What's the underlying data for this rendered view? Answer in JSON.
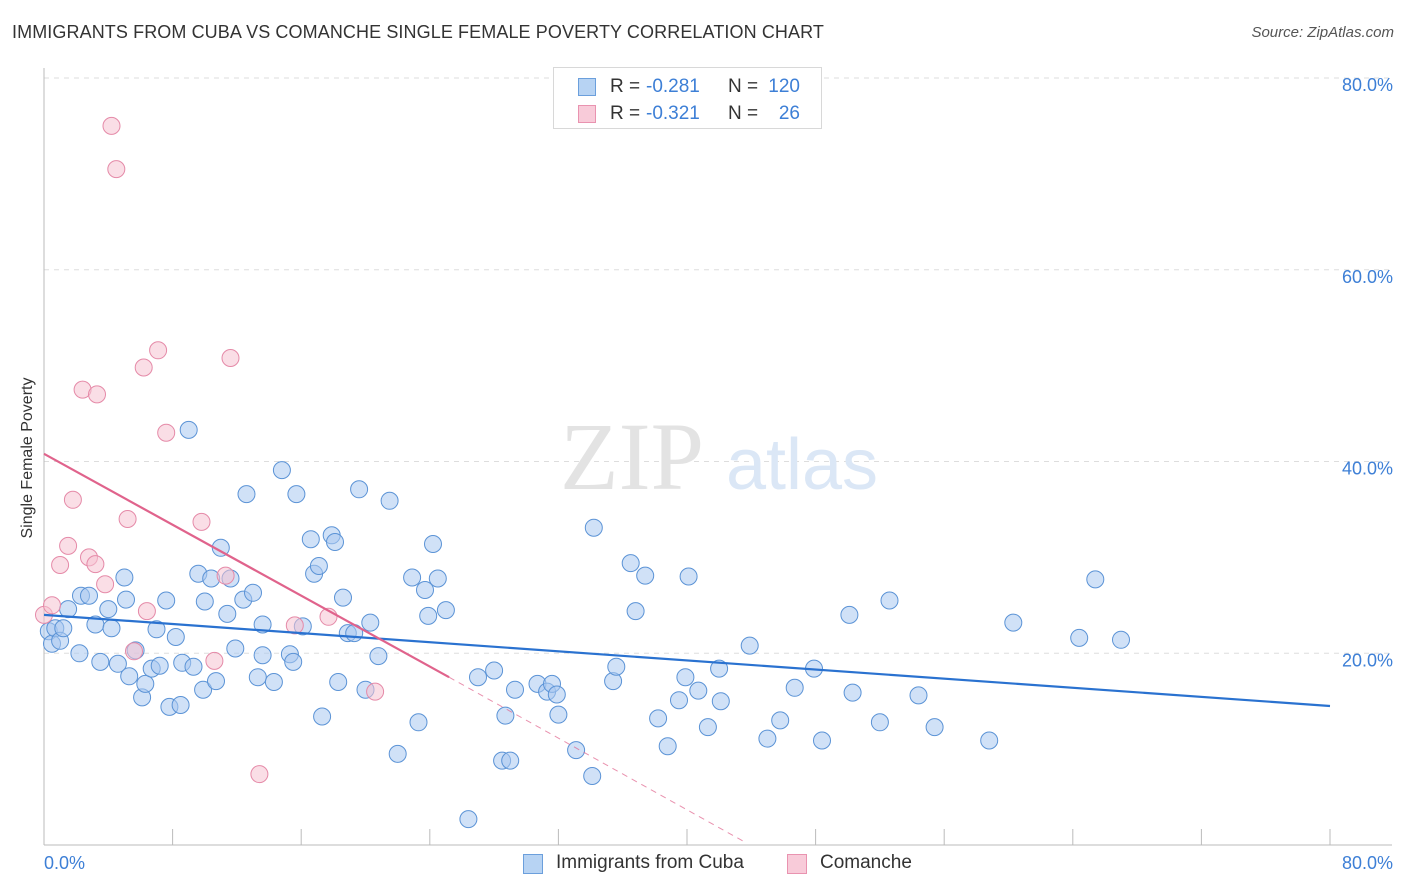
{
  "title": "IMMIGRANTS FROM CUBA VS COMANCHE SINGLE FEMALE POVERTY CORRELATION CHART",
  "source": "Source: ZipAtlas.com",
  "watermark": {
    "zip": "ZIP",
    "atlas": "atlas"
  },
  "legend": {
    "cuba": {
      "r_label": "R =",
      "r_value": "-0.281",
      "n_label": "N =",
      "n_value": "120"
    },
    "comanche": {
      "r_label": "R =",
      "r_value": "-0.321",
      "n_label": "N =",
      "n_value": "26"
    }
  },
  "colors": {
    "cuba_fill": "#a9c9f0",
    "cuba_stroke": "#5b93d6",
    "cuba_line": "#2a72d0",
    "comanche_fill": "#f6c3d2",
    "comanche_stroke": "#e58aa8",
    "comanche_line": "#e0638c",
    "accent_text": "#3d7fd6",
    "grid": "#dddddd"
  },
  "chart_data": {
    "type": "scatter",
    "title": "IMMIGRANTS FROM CUBA VS COMANCHE SINGLE FEMALE POVERTY CORRELATION CHART",
    "xlabel": "",
    "ylabel": "Single Female Poverty",
    "xlim": [
      0,
      80
    ],
    "ylim": [
      0,
      80
    ],
    "x_tick_labels": [
      "0.0%",
      "80.0%"
    ],
    "y_tick_labels": [
      "20.0%",
      "40.0%",
      "60.0%",
      "80.0%"
    ],
    "y_ticks": [
      20,
      40,
      60,
      80
    ],
    "grid": true,
    "legend_position": "top-center",
    "series": [
      {
        "name": "Immigrants from Cuba",
        "trend": {
          "x": [
            0,
            80
          ],
          "y": [
            24.0,
            14.5
          ]
        },
        "points": [
          [
            0.3,
            22.3
          ],
          [
            0.5,
            21.0
          ],
          [
            0.7,
            22.6
          ],
          [
            1.0,
            21.3
          ],
          [
            1.2,
            22.6
          ],
          [
            1.5,
            24.6
          ],
          [
            2.2,
            20.0
          ],
          [
            2.3,
            26.0
          ],
          [
            2.8,
            26.0
          ],
          [
            3.2,
            23.0
          ],
          [
            3.5,
            19.1
          ],
          [
            4.0,
            24.6
          ],
          [
            4.2,
            22.6
          ],
          [
            4.6,
            18.9
          ],
          [
            5.0,
            27.9
          ],
          [
            5.1,
            25.6
          ],
          [
            5.3,
            17.6
          ],
          [
            5.7,
            20.3
          ],
          [
            6.1,
            15.4
          ],
          [
            6.3,
            16.8
          ],
          [
            6.7,
            18.4
          ],
          [
            7.0,
            22.5
          ],
          [
            7.2,
            18.7
          ],
          [
            7.6,
            25.5
          ],
          [
            7.8,
            14.4
          ],
          [
            8.2,
            21.7
          ],
          [
            8.5,
            14.6
          ],
          [
            8.6,
            19.0
          ],
          [
            9.0,
            43.3
          ],
          [
            9.3,
            18.6
          ],
          [
            9.6,
            28.3
          ],
          [
            9.9,
            16.2
          ],
          [
            10.0,
            25.4
          ],
          [
            10.4,
            27.8
          ],
          [
            10.7,
            17.1
          ],
          [
            11.0,
            31.0
          ],
          [
            11.4,
            24.1
          ],
          [
            11.6,
            27.8
          ],
          [
            11.9,
            20.5
          ],
          [
            12.4,
            25.6
          ],
          [
            12.6,
            36.6
          ],
          [
            13.0,
            26.3
          ],
          [
            13.3,
            17.5
          ],
          [
            13.6,
            19.8
          ],
          [
            13.6,
            23.0
          ],
          [
            14.3,
            17.0
          ],
          [
            14.8,
            39.1
          ],
          [
            15.3,
            19.9
          ],
          [
            15.5,
            19.1
          ],
          [
            15.7,
            36.6
          ],
          [
            16.1,
            22.8
          ],
          [
            16.6,
            31.9
          ],
          [
            16.8,
            28.3
          ],
          [
            17.1,
            29.1
          ],
          [
            17.3,
            13.4
          ],
          [
            17.9,
            32.3
          ],
          [
            18.1,
            31.6
          ],
          [
            18.3,
            17.0
          ],
          [
            18.6,
            25.8
          ],
          [
            18.9,
            22.1
          ],
          [
            19.3,
            22.1
          ],
          [
            19.6,
            37.1
          ],
          [
            20.0,
            16.2
          ],
          [
            20.3,
            23.2
          ],
          [
            20.8,
            19.7
          ],
          [
            21.5,
            35.9
          ],
          [
            22.0,
            9.5
          ],
          [
            22.9,
            27.9
          ],
          [
            23.3,
            12.8
          ],
          [
            23.7,
            26.6
          ],
          [
            23.9,
            23.9
          ],
          [
            24.2,
            31.4
          ],
          [
            24.5,
            27.8
          ],
          [
            25.0,
            24.5
          ],
          [
            26.4,
            2.7
          ],
          [
            27.0,
            17.5
          ],
          [
            28.0,
            18.2
          ],
          [
            28.5,
            8.8
          ],
          [
            28.7,
            13.5
          ],
          [
            29.0,
            8.8
          ],
          [
            29.3,
            16.2
          ],
          [
            30.7,
            16.8
          ],
          [
            31.3,
            16.0
          ],
          [
            31.6,
            16.8
          ],
          [
            31.9,
            15.7
          ],
          [
            32.0,
            13.6
          ],
          [
            33.1,
            9.9
          ],
          [
            34.1,
            7.2
          ],
          [
            34.2,
            33.1
          ],
          [
            35.4,
            17.1
          ],
          [
            35.6,
            18.6
          ],
          [
            36.5,
            29.4
          ],
          [
            36.8,
            24.4
          ],
          [
            37.4,
            28.1
          ],
          [
            38.2,
            13.2
          ],
          [
            38.8,
            10.3
          ],
          [
            39.5,
            15.1
          ],
          [
            39.9,
            17.5
          ],
          [
            40.1,
            28.0
          ],
          [
            40.7,
            16.1
          ],
          [
            41.3,
            12.3
          ],
          [
            42.0,
            18.4
          ],
          [
            42.1,
            15.0
          ],
          [
            43.9,
            20.8
          ],
          [
            45.0,
            11.1
          ],
          [
            45.8,
            13.0
          ],
          [
            46.7,
            16.4
          ],
          [
            47.9,
            18.4
          ],
          [
            48.4,
            10.9
          ],
          [
            50.1,
            24.0
          ],
          [
            50.3,
            15.9
          ],
          [
            52.0,
            12.8
          ],
          [
            52.6,
            25.5
          ],
          [
            54.4,
            15.6
          ],
          [
            55.4,
            12.3
          ],
          [
            58.8,
            10.9
          ],
          [
            60.3,
            23.2
          ],
          [
            64.4,
            21.6
          ],
          [
            65.4,
            27.7
          ],
          [
            67.0,
            21.4
          ]
        ]
      },
      {
        "name": "Comanche",
        "trend": {
          "x": [
            0,
            25.2
          ],
          "y": [
            40.8,
            17.5
          ]
        },
        "trend_extension": {
          "x": [
            25.2,
            43.5
          ],
          "y": [
            17.5,
            0.4
          ]
        },
        "points": [
          [
            0.0,
            24.0
          ],
          [
            0.5,
            25.0
          ],
          [
            1.0,
            29.2
          ],
          [
            1.5,
            31.2
          ],
          [
            1.8,
            36.0
          ],
          [
            2.4,
            47.5
          ],
          [
            2.8,
            30.0
          ],
          [
            3.2,
            29.3
          ],
          [
            3.3,
            47.0
          ],
          [
            3.8,
            27.2
          ],
          [
            4.2,
            75.0
          ],
          [
            4.5,
            70.5
          ],
          [
            5.2,
            34.0
          ],
          [
            5.6,
            20.2
          ],
          [
            6.2,
            49.8
          ],
          [
            6.4,
            24.4
          ],
          [
            7.1,
            51.6
          ],
          [
            7.6,
            43.0
          ],
          [
            9.8,
            33.7
          ],
          [
            10.6,
            19.2
          ],
          [
            11.3,
            28.1
          ],
          [
            11.6,
            50.8
          ],
          [
            13.4,
            7.4
          ],
          [
            15.6,
            22.9
          ],
          [
            17.7,
            23.8
          ],
          [
            20.6,
            16.0
          ]
        ]
      }
    ]
  }
}
